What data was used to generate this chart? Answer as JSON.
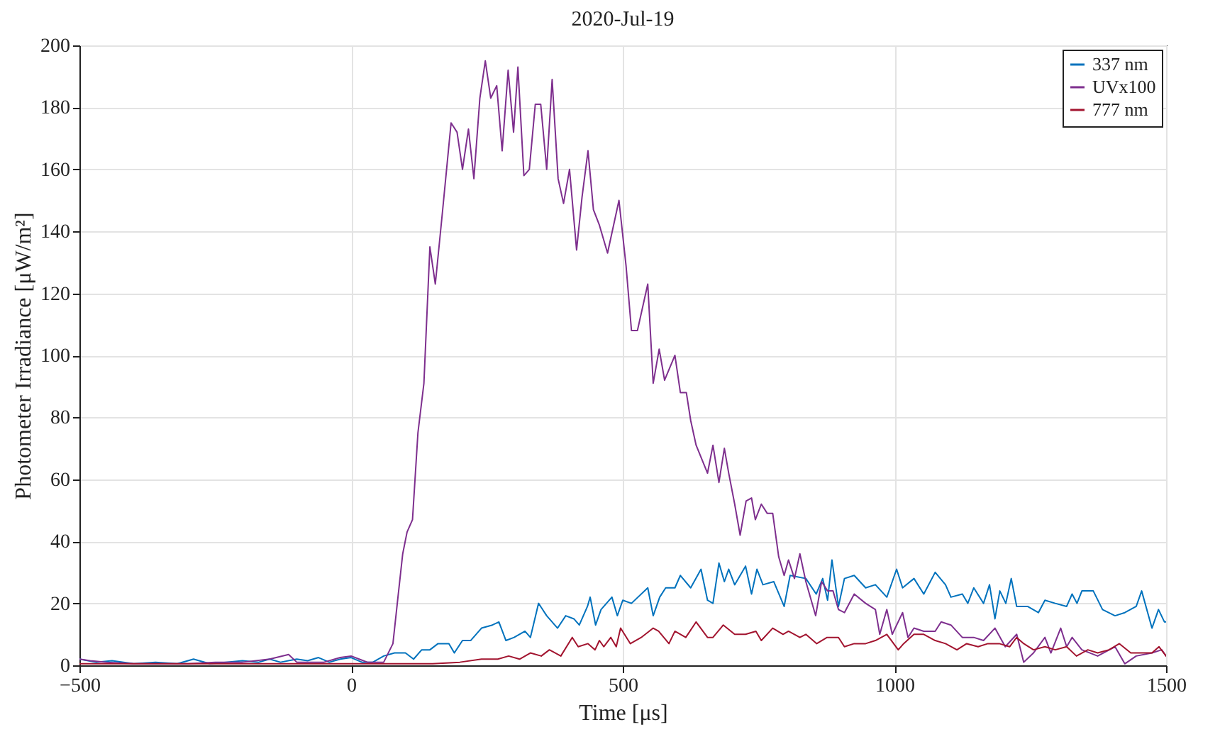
{
  "chart_data": {
    "type": "line",
    "title": "2020-Jul-19",
    "xlabel": "Time [μs]",
    "ylabel": "Photometer Irradiance [μW/m²]",
    "xlim": [
      -500,
      1500
    ],
    "xticks": [
      -500,
      0,
      500,
      1000,
      1500
    ],
    "ylim": [
      0,
      200
    ],
    "yticks": [
      0,
      20,
      40,
      60,
      80,
      100,
      120,
      140,
      160,
      180,
      200
    ],
    "grid": true,
    "legend": "top right",
    "line_style": "solid",
    "marker": "none",
    "series": [
      {
        "name": "337 nm",
        "color": "#0072bd",
        "x": [
          -500,
          -470,
          -440,
          -400,
          -360,
          -320,
          -290,
          -260,
          -230,
          -200,
          -170,
          -150,
          -130,
          -100,
          -80,
          -60,
          -40,
          -20,
          0,
          20,
          40,
          60,
          80,
          100,
          115,
          130,
          145,
          160,
          180,
          190,
          205,
          220,
          240,
          260,
          272,
          285,
          300,
          320,
          330,
          345,
          360,
          380,
          395,
          410,
          420,
          435,
          440,
          450,
          460,
          480,
          490,
          500,
          516,
          546,
          556,
          568,
          579,
          596,
          606,
          625,
          644,
          656,
          666,
          677,
          687,
          695,
          706,
          726,
          737,
          747,
          758,
          778,
          797,
          808,
          837,
          856,
          868,
          877,
          885,
          897,
          908,
          926,
          947,
          965,
          986,
          1004,
          1015,
          1036,
          1054,
          1075,
          1094,
          1104,
          1125,
          1135,
          1146,
          1164,
          1175,
          1185,
          1194,
          1205,
          1215,
          1225,
          1245,
          1265,
          1277,
          1296,
          1317,
          1327,
          1336,
          1345,
          1366,
          1383,
          1406,
          1424,
          1445,
          1455,
          1474,
          1486,
          1497,
          1500
        ],
        "values": [
          2,
          1,
          1.5,
          0.5,
          1,
          0.5,
          2,
          0.5,
          1,
          1.5,
          1,
          2,
          1,
          2,
          1.5,
          2.5,
          1,
          2,
          2.5,
          1,
          1,
          3,
          4,
          4,
          2,
          5,
          5,
          7,
          7,
          4,
          8,
          8,
          12,
          13,
          14,
          8,
          9,
          11,
          9,
          20,
          16,
          12,
          16,
          15,
          13,
          19,
          22,
          13,
          18,
          22,
          16,
          21,
          20,
          25,
          16,
          22,
          25,
          25,
          29,
          25,
          31,
          21,
          20,
          33,
          27,
          31,
          26,
          32,
          23,
          31,
          26,
          27,
          19,
          29,
          28,
          23,
          28,
          21,
          34,
          19,
          28,
          29,
          25,
          26,
          22,
          31,
          25,
          28,
          23,
          30,
          26,
          22,
          23,
          20,
          25,
          20,
          26,
          15,
          24,
          20,
          28,
          19,
          19,
          17,
          21,
          20,
          19,
          23,
          20,
          24,
          24,
          18,
          16,
          17,
          19,
          24,
          12,
          18,
          14,
          14
        ]
      },
      {
        "name": "UVx100",
        "color": "#7e2f8e",
        "x": [
          -500,
          -480,
          -450,
          -400,
          -350,
          -300,
          -250,
          -200,
          -150,
          -115,
          -100,
          -50,
          -20,
          0,
          30,
          60,
          77,
          85,
          95,
          103,
          113,
          123,
          134,
          145,
          155,
          168,
          184,
          195,
          205,
          216,
          226,
          237,
          247,
          257,
          268,
          278,
          289,
          299,
          307,
          318,
          328,
          339,
          349,
          360,
          370,
          381,
          391,
          402,
          415,
          425,
          436,
          446,
          457,
          472,
          493,
          506,
          516,
          527,
          546,
          556,
          567,
          577,
          596,
          606,
          617,
          625,
          635,
          656,
          666,
          677,
          687,
          695,
          706,
          716,
          727,
          737,
          744,
          755,
          766,
          776,
          787,
          797,
          805,
          816,
          826,
          837,
          855,
          866,
          877,
          887,
          897,
          908,
          926,
          947,
          965,
          973,
          986,
          996,
          1015,
          1025,
          1036,
          1054,
          1075,
          1086,
          1104,
          1125,
          1146,
          1164,
          1185,
          1204,
          1225,
          1238,
          1256,
          1277,
          1288,
          1306,
          1317,
          1327,
          1345,
          1374,
          1406,
          1424,
          1445,
          1474,
          1492,
          1500
        ],
        "values": [
          2,
          1.5,
          1,
          0.5,
          0.5,
          0.5,
          1,
          1,
          2,
          3.5,
          1,
          1,
          2.5,
          3,
          1,
          1,
          7,
          20,
          36,
          43,
          47,
          75,
          91,
          135,
          123,
          146,
          175,
          172,
          160,
          173,
          157,
          183,
          195,
          183,
          187,
          166,
          192,
          172,
          193,
          158,
          160,
          181,
          181,
          160,
          189,
          157,
          149,
          160,
          134,
          151,
          166,
          147,
          142,
          133,
          150,
          129,
          108,
          108,
          123,
          91,
          102,
          92,
          100,
          88,
          88,
          79,
          71,
          62,
          71,
          59,
          70,
          62,
          52,
          42,
          53,
          54,
          47,
          52,
          49,
          49,
          35,
          29,
          34,
          28,
          36,
          27,
          16,
          27,
          24,
          24,
          18,
          17,
          23,
          20,
          18,
          10,
          18,
          10,
          17,
          9,
          12,
          11,
          11,
          14,
          13,
          9,
          9,
          8,
          12,
          6,
          10,
          1,
          4,
          9,
          4,
          12,
          6,
          9,
          5,
          3,
          6,
          0.5,
          3,
          4,
          5,
          3
        ]
      },
      {
        "name": "777 nm",
        "color": "#a2142f",
        "x": [
          -500,
          -400,
          -300,
          -200,
          -100,
          0,
          100,
          150,
          200,
          240,
          270,
          290,
          310,
          330,
          350,
          365,
          386,
          407,
          418,
          436,
          449,
          457,
          465,
          478,
          488,
          496,
          514,
          534,
          556,
          566,
          585,
          596,
          616,
          635,
          656,
          666,
          685,
          706,
          726,
          745,
          755,
          776,
          795,
          805,
          826,
          837,
          857,
          876,
          897,
          908,
          926,
          947,
          965,
          986,
          1007,
          1017,
          1036,
          1054,
          1075,
          1094,
          1115,
          1133,
          1154,
          1172,
          1193,
          1212,
          1225,
          1238,
          1256,
          1277,
          1296,
          1317,
          1335,
          1356,
          1374,
          1395,
          1414,
          1435,
          1453,
          1474,
          1487,
          1500
        ],
        "values": [
          0.5,
          0.5,
          0.5,
          0.5,
          0.5,
          0.5,
          0.5,
          0.5,
          1,
          2,
          2,
          3,
          2,
          4,
          3,
          5,
          3,
          9,
          6,
          7,
          5,
          8,
          6,
          9,
          6,
          12,
          7,
          9,
          12,
          11,
          7,
          11,
          9,
          14,
          9,
          9,
          13,
          10,
          10,
          11,
          8,
          12,
          10,
          11,
          9,
          10,
          7,
          9,
          9,
          6,
          7,
          7,
          8,
          10,
          5,
          7,
          10,
          10,
          8,
          7,
          5,
          7,
          6,
          7,
          7,
          6,
          9,
          7,
          5,
          6,
          5,
          6,
          3,
          5,
          4,
          5,
          7,
          4,
          4,
          4,
          6,
          3
        ]
      }
    ]
  }
}
